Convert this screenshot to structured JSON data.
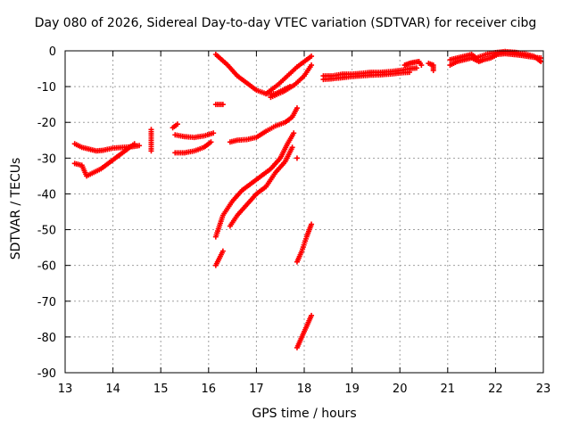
{
  "chart_data": {
    "type": "scatter",
    "title": "Day 080 of 2026, Sidereal Day-to-day VTEC variation (SDTVAR) for receiver cibg",
    "xlabel": "GPS time / hours",
    "ylabel": "SDTVAR / TECUs",
    "xlim": [
      13,
      23
    ],
    "ylim": [
      -90,
      0
    ],
    "xticks": [
      "13",
      "14",
      "15",
      "16",
      "17",
      "18",
      "19",
      "20",
      "21",
      "22",
      "23"
    ],
    "yticks": [
      "0",
      "-10",
      "-20",
      "-30",
      "-40",
      "-50",
      "-60",
      "-70",
      "-80",
      "-90"
    ],
    "grid": true,
    "marker": "plus",
    "color": "#ff0000",
    "series": [
      {
        "name": "s1",
        "points": [
          [
            13.2,
            -26
          ],
          [
            13.35,
            -27
          ],
          [
            13.5,
            -27.5
          ],
          [
            13.65,
            -28
          ],
          [
            13.8,
            -27.8
          ],
          [
            14.0,
            -27.2
          ],
          [
            14.2,
            -27
          ],
          [
            14.4,
            -26.8
          ],
          [
            14.55,
            -26.5
          ]
        ]
      },
      {
        "name": "s2",
        "points": [
          [
            13.2,
            -31.5
          ],
          [
            13.35,
            -32
          ],
          [
            13.45,
            -35
          ],
          [
            13.6,
            -34
          ],
          [
            13.75,
            -33
          ],
          [
            13.9,
            -31.5
          ],
          [
            14.05,
            -30
          ],
          [
            14.2,
            -28.5
          ],
          [
            14.35,
            -27
          ],
          [
            14.45,
            -26
          ]
        ]
      },
      {
        "name": "s3",
        "points": [
          [
            14.8,
            -22
          ],
          [
            14.8,
            -25
          ],
          [
            14.8,
            -28
          ]
        ]
      },
      {
        "name": "s4",
        "points": [
          [
            15.25,
            -21.5
          ],
          [
            15.35,
            -20.5
          ]
        ]
      },
      {
        "name": "s5",
        "points": [
          [
            15.3,
            -23.5
          ],
          [
            15.5,
            -24
          ],
          [
            15.7,
            -24.2
          ],
          [
            15.9,
            -23.8
          ],
          [
            16.1,
            -23
          ]
        ]
      },
      {
        "name": "s6",
        "points": [
          [
            15.3,
            -28.5
          ],
          [
            15.5,
            -28.5
          ],
          [
            15.7,
            -28
          ],
          [
            15.9,
            -27
          ],
          [
            16.05,
            -25.5
          ]
        ]
      },
      {
        "name": "s7",
        "points": [
          [
            16.15,
            -15
          ],
          [
            16.3,
            -15
          ]
        ]
      },
      {
        "name": "s8",
        "points": [
          [
            16.15,
            -1
          ],
          [
            16.4,
            -4
          ],
          [
            16.6,
            -7
          ],
          [
            16.8,
            -9
          ],
          [
            17.0,
            -11
          ],
          [
            17.2,
            -12
          ],
          [
            17.4,
            -12
          ],
          [
            17.55,
            -11
          ],
          [
            17.7,
            -10
          ]
        ]
      },
      {
        "name": "s9",
        "points": [
          [
            17.2,
            -12
          ],
          [
            17.45,
            -9.5
          ],
          [
            17.65,
            -7
          ],
          [
            17.85,
            -4.5
          ],
          [
            18.05,
            -2.5
          ],
          [
            18.15,
            -1.5
          ]
        ]
      },
      {
        "name": "s10",
        "points": [
          [
            17.3,
            -13
          ],
          [
            17.55,
            -11.5
          ],
          [
            17.8,
            -9.5
          ],
          [
            18.0,
            -7
          ],
          [
            18.15,
            -4
          ]
        ]
      },
      {
        "name": "s11",
        "points": [
          [
            16.45,
            -25.5
          ],
          [
            16.6,
            -25
          ],
          [
            16.8,
            -24.8
          ],
          [
            17.0,
            -24.2
          ],
          [
            17.2,
            -22.5
          ],
          [
            17.4,
            -21
          ],
          [
            17.6,
            -20
          ],
          [
            17.75,
            -18.5
          ],
          [
            17.85,
            -16
          ]
        ]
      },
      {
        "name": "s12",
        "points": [
          [
            16.15,
            -52
          ],
          [
            16.3,
            -46
          ],
          [
            16.5,
            -42
          ],
          [
            16.7,
            -39
          ],
          [
            16.9,
            -37
          ],
          [
            17.1,
            -35
          ],
          [
            17.3,
            -33
          ],
          [
            17.5,
            -30
          ],
          [
            17.65,
            -26
          ],
          [
            17.78,
            -23
          ]
        ]
      },
      {
        "name": "s13",
        "points": [
          [
            16.15,
            -60
          ],
          [
            16.3,
            -56
          ]
        ]
      },
      {
        "name": "s14",
        "points": [
          [
            16.45,
            -49
          ],
          [
            16.6,
            -46
          ],
          [
            16.8,
            -43
          ],
          [
            17.0,
            -40
          ],
          [
            17.2,
            -38
          ],
          [
            17.4,
            -34
          ],
          [
            17.6,
            -31
          ],
          [
            17.75,
            -27
          ]
        ]
      },
      {
        "name": "s15",
        "points": [
          [
            17.85,
            -30
          ]
        ]
      },
      {
        "name": "s16",
        "points": [
          [
            17.85,
            -59
          ],
          [
            17.95,
            -56
          ],
          [
            18.05,
            -52
          ],
          [
            18.15,
            -48.5
          ]
        ]
      },
      {
        "name": "s17",
        "points": [
          [
            17.85,
            -83
          ],
          [
            17.95,
            -80
          ],
          [
            18.05,
            -77
          ],
          [
            18.15,
            -74
          ]
        ]
      },
      {
        "name": "s18",
        "points": [
          [
            18.4,
            -7
          ],
          [
            18.6,
            -7
          ],
          [
            18.8,
            -6.5
          ],
          [
            19.0,
            -6.5
          ],
          [
            19.2,
            -6.3
          ],
          [
            19.4,
            -6
          ],
          [
            19.6,
            -6
          ],
          [
            19.8,
            -5.8
          ],
          [
            20.0,
            -5.5
          ],
          [
            20.2,
            -5
          ],
          [
            20.35,
            -4.8
          ]
        ]
      },
      {
        "name": "s19",
        "points": [
          [
            18.4,
            -8
          ],
          [
            18.6,
            -7.8
          ],
          [
            18.8,
            -7.5
          ],
          [
            19.0,
            -7.2
          ],
          [
            19.2,
            -7
          ],
          [
            19.4,
            -6.8
          ],
          [
            19.6,
            -6.7
          ],
          [
            19.8,
            -6.5
          ],
          [
            20.0,
            -6.2
          ],
          [
            20.2,
            -6
          ]
        ]
      },
      {
        "name": "s20",
        "points": [
          [
            20.1,
            -4
          ],
          [
            20.2,
            -3.5
          ],
          [
            20.3,
            -3.2
          ],
          [
            20.4,
            -3
          ],
          [
            20.45,
            -4
          ]
        ]
      },
      {
        "name": "s21",
        "points": [
          [
            20.6,
            -3.5
          ],
          [
            20.7,
            -4
          ],
          [
            20.7,
            -5.5
          ]
        ]
      },
      {
        "name": "s22",
        "points": [
          [
            21.05,
            -4
          ],
          [
            21.2,
            -3
          ],
          [
            21.35,
            -2.5
          ],
          [
            21.5,
            -2
          ],
          [
            21.65,
            -3
          ],
          [
            21.75,
            -2.5
          ],
          [
            21.9,
            -2
          ],
          [
            22.05,
            -1
          ],
          [
            22.2,
            -0.8
          ],
          [
            22.35,
            -1
          ],
          [
            22.5,
            -1.2
          ],
          [
            22.65,
            -1.5
          ],
          [
            22.8,
            -1.8
          ],
          [
            22.95,
            -2
          ]
        ]
      },
      {
        "name": "s23",
        "points": [
          [
            21.05,
            -2.5
          ],
          [
            21.2,
            -2
          ],
          [
            21.35,
            -1.5
          ],
          [
            21.5,
            -1
          ],
          [
            21.6,
            -2
          ],
          [
            21.8,
            -1
          ],
          [
            22.0,
            -0.5
          ],
          [
            22.2,
            -0.2
          ],
          [
            22.4,
            -0.4
          ],
          [
            22.6,
            -0.8
          ],
          [
            22.8,
            -1.5
          ],
          [
            22.95,
            -3
          ]
        ]
      }
    ]
  }
}
